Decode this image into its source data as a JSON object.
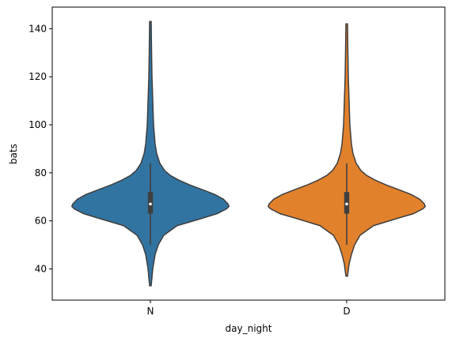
{
  "chart_data": {
    "type": "violin",
    "xlabel": "day_night",
    "ylabel": "bats",
    "ylim": [
      27,
      149
    ],
    "yticks": [
      40,
      60,
      80,
      100,
      120,
      140
    ],
    "categories": [
      "N",
      "D"
    ],
    "colors": {
      "N": "#3274a1",
      "D": "#e1812c",
      "outline": "#3f3f3f",
      "box": "#3f3f3f",
      "median_marker": "#ffffff"
    },
    "grid": false,
    "legend": "none",
    "violins": [
      {
        "category": "N",
        "min": 33,
        "max": 143,
        "q1": 63,
        "median": 67,
        "q3": 72,
        "whisker_low": 50,
        "whisker_high": 84,
        "density_profile": [
          [
            33,
            0.01
          ],
          [
            40,
            0.03
          ],
          [
            46,
            0.06
          ],
          [
            50,
            0.1
          ],
          [
            54,
            0.17
          ],
          [
            58,
            0.34
          ],
          [
            61,
            0.65
          ],
          [
            63,
            0.85
          ],
          [
            65,
            0.97
          ],
          [
            66,
            1.0
          ],
          [
            67,
            0.99
          ],
          [
            69,
            0.93
          ],
          [
            71,
            0.82
          ],
          [
            73,
            0.66
          ],
          [
            75,
            0.5
          ],
          [
            77,
            0.36
          ],
          [
            79,
            0.25
          ],
          [
            81,
            0.18
          ],
          [
            84,
            0.12
          ],
          [
            88,
            0.08
          ],
          [
            92,
            0.06
          ],
          [
            96,
            0.05
          ],
          [
            100,
            0.04
          ],
          [
            105,
            0.035
          ],
          [
            110,
            0.03
          ],
          [
            115,
            0.025
          ],
          [
            120,
            0.02
          ],
          [
            130,
            0.015
          ],
          [
            143,
            0.01
          ]
        ]
      },
      {
        "category": "D",
        "min": 37,
        "max": 142,
        "q1": 63,
        "median": 67,
        "q3": 72,
        "whisker_low": 50,
        "whisker_high": 84,
        "density_profile": [
          [
            37,
            0.01
          ],
          [
            42,
            0.03
          ],
          [
            46,
            0.06
          ],
          [
            50,
            0.1
          ],
          [
            54,
            0.17
          ],
          [
            58,
            0.34
          ],
          [
            61,
            0.64
          ],
          [
            63,
            0.85
          ],
          [
            65,
            0.97
          ],
          [
            66,
            1.0
          ],
          [
            67,
            0.99
          ],
          [
            69,
            0.93
          ],
          [
            71,
            0.82
          ],
          [
            73,
            0.66
          ],
          [
            75,
            0.5
          ],
          [
            77,
            0.36
          ],
          [
            79,
            0.25
          ],
          [
            81,
            0.18
          ],
          [
            84,
            0.12
          ],
          [
            88,
            0.08
          ],
          [
            92,
            0.06
          ],
          [
            96,
            0.05
          ],
          [
            100,
            0.04
          ],
          [
            105,
            0.035
          ],
          [
            110,
            0.03
          ],
          [
            115,
            0.025
          ],
          [
            120,
            0.02
          ],
          [
            130,
            0.015
          ],
          [
            142,
            0.01
          ]
        ]
      }
    ]
  }
}
